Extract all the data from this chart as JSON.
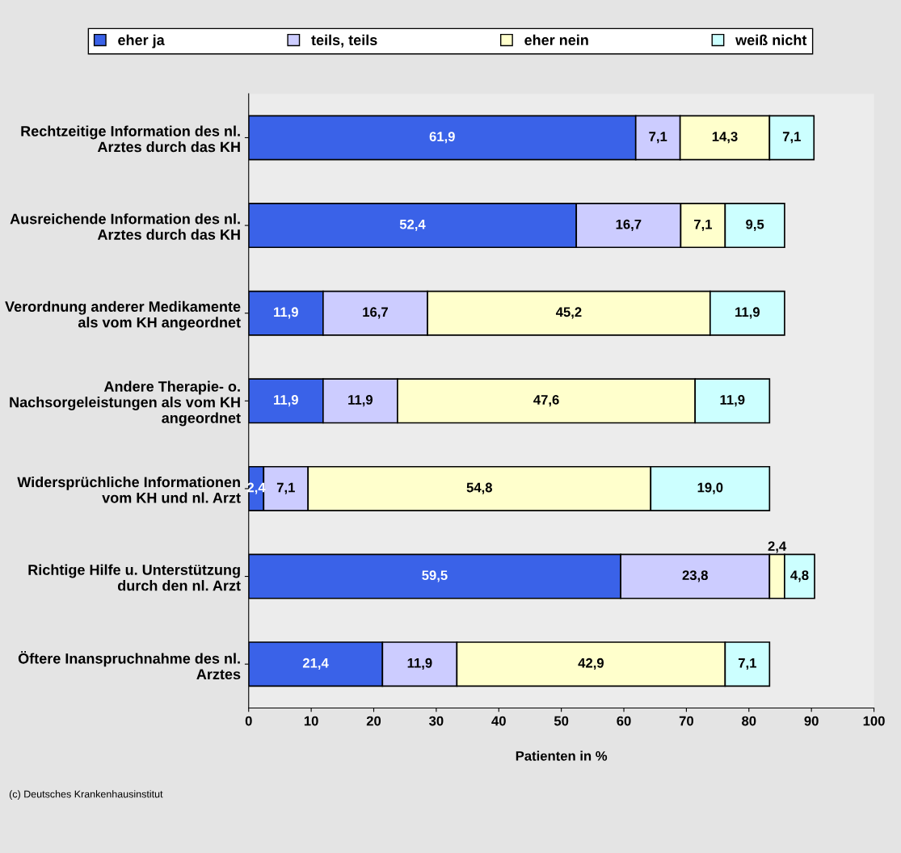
{
  "chart_data": {
    "type": "bar",
    "orientation": "horizontal",
    "stacked": true,
    "categories": [
      "Rechtzeitige Information des nl. Arztes durch das KH",
      "Ausreichende Information des nl. Arztes durch das KH",
      "Verordnung anderer Medikamente als vom KH angeordnet",
      "Andere Therapie- o. Nachsorgeleistungen als vom KH angeordnet",
      "Widersprüchliche Informationen vom KH und nl. Arzt",
      "Richtige Hilfe u. Unterstützung durch den nl. Arzt",
      "Öftere Inanspruchnahme des nl. Arztes"
    ],
    "series": [
      {
        "name": "eher ja",
        "color": "#3a62e8",
        "values": [
          61.9,
          52.4,
          11.9,
          11.9,
          2.4,
          59.5,
          21.4
        ],
        "value_labels": [
          "61,9",
          "52,4",
          "11,9",
          "11,9",
          "2,4",
          "59,5",
          "21,4"
        ]
      },
      {
        "name": "teils, teils",
        "color": "#ccccff",
        "values": [
          7.1,
          16.7,
          16.7,
          11.9,
          7.1,
          23.8,
          11.9
        ],
        "value_labels": [
          "7,1",
          "16,7",
          "16,7",
          "11,9",
          "7,1",
          "23,8",
          "11,9"
        ]
      },
      {
        "name": "eher nein",
        "color": "#ffffcc",
        "values": [
          14.3,
          7.1,
          45.2,
          47.6,
          54.8,
          2.4,
          42.9
        ],
        "value_labels": [
          "14,3",
          "7,1",
          "45,2",
          "47,6",
          "54,8",
          "2,4",
          "42,9"
        ]
      },
      {
        "name": "weiß nicht",
        "color": "#ccffff",
        "values": [
          7.1,
          9.5,
          11.9,
          11.9,
          19.0,
          4.8,
          7.1
        ],
        "value_labels": [
          "7,1",
          "9,5",
          "11,9",
          "11,9",
          "19,0",
          "4,8",
          "7,1"
        ]
      }
    ],
    "xlim": [
      0,
      100
    ],
    "xticks": [
      0,
      10,
      20,
      30,
      40,
      50,
      60,
      70,
      80,
      90,
      100
    ],
    "xlabel": "Patienten in %",
    "grid": false,
    "legend": "top",
    "annotations": [
      "(c) Deutsches Krankenhausinstitut"
    ]
  }
}
